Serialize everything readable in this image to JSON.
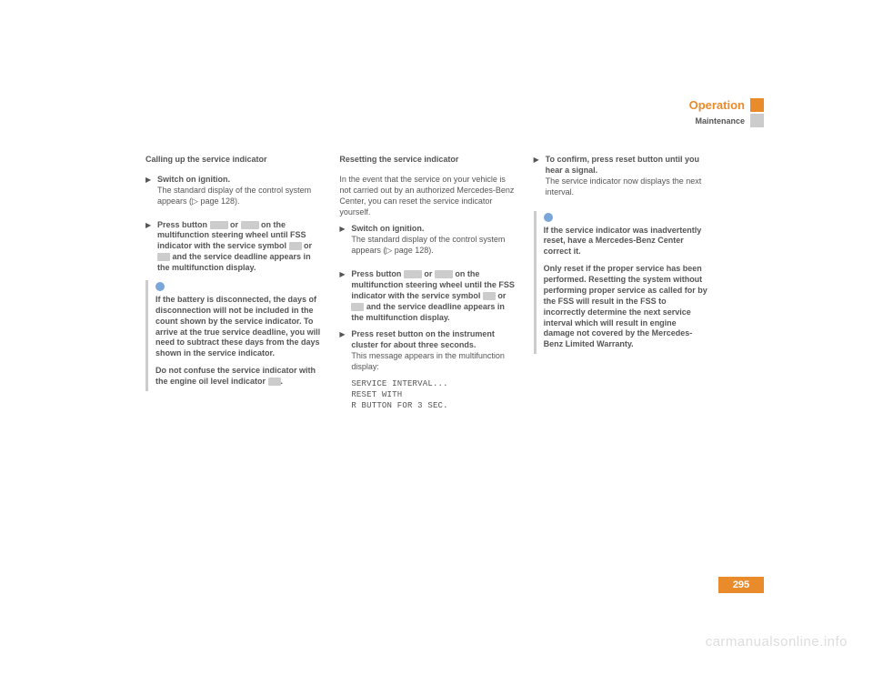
{
  "header": {
    "operation": "Operation",
    "maintenance": "Maintenance"
  },
  "page_number": "295",
  "watermark": "carmanualsonline.info",
  "colors": {
    "accent": "#e98b2a",
    "text": "#555555",
    "rule": "#cccccc",
    "info_dot": "#7aa7d9",
    "bg": "#ffffff",
    "wm": "#dddddd"
  },
  "col1": {
    "title": "Calling up the service indicator",
    "step1_head": "Switch on ignition.",
    "step1_body": "The standard display of the control system appears (▷ page 128).",
    "step2_head_a": "Press button ",
    "step2_head_b": " or ",
    "step2_head_c": " on the multifunction steering wheel until FSS indicator with the service symbol ",
    "step2_head_d": " or ",
    "step2_head_e": " and the service deadline appears in the multifunction display.",
    "note_p1": "If the battery is disconnected, the days of disconnection will not be included in the count shown by the service indicator. To arrive at the true service deadline, you will need to subtract these days from the days shown in the service indicator.",
    "note_p2_a": "Do not confuse the service indicator with the engine oil level indicator ",
    "note_p2_b": "."
  },
  "col2": {
    "title": "Resetting the service indicator",
    "intro": "In the event that the service on your vehicle is not carried out by an authorized Mercedes-Benz Center, you can reset the service indicator yourself.",
    "step1_head": "Switch on ignition.",
    "step1_body": "The standard display of the control system appears (▷ page 128).",
    "step2_head_a": "Press button ",
    "step2_head_b": " or ",
    "step2_head_c": " on the multifunction steering wheel until the FSS indicator with the service symbol ",
    "step2_head_d": " or ",
    "step2_head_e": " and the service deadline appears in the multifunction display.",
    "step3_head": "Press reset button on the instrument cluster for about three seconds.",
    "step3_body": "This message appears in the multifunction display:",
    "mono1": "SERVICE INTERVAL...",
    "mono2": "RESET WITH",
    "mono3": "R BUTTON FOR 3 SEC."
  },
  "col3": {
    "step1_head": "To confirm, press reset button until you hear a signal.",
    "step1_body": "The service indicator now displays the next interval.",
    "note_p1": "If the service indicator was inadvertently reset, have a Mercedes-Benz Center correct it.",
    "note_p2": "Only reset if the proper service has been performed. Resetting the system without performing proper service as called for by the FSS will result in the FSS to incorrectly determine the next service interval which will result in engine damage not covered by the Mercedes-Benz Limited Warranty."
  }
}
